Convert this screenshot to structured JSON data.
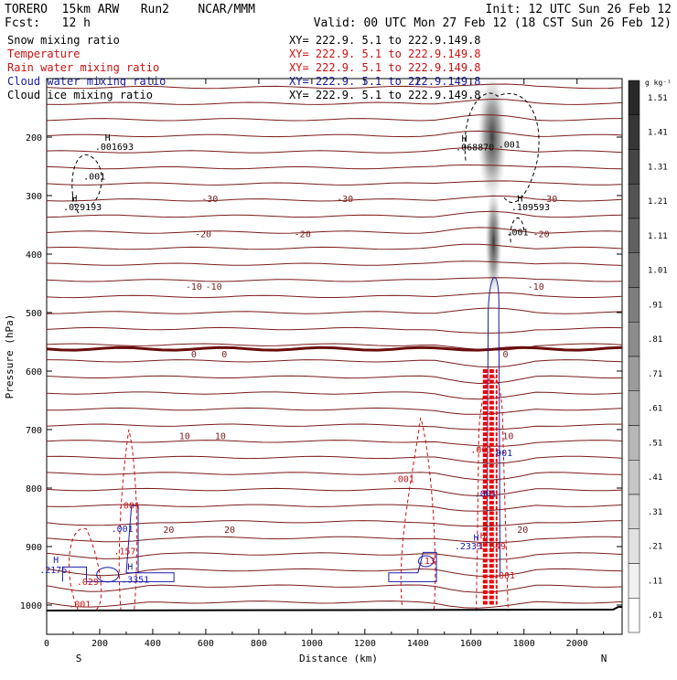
{
  "header": {
    "line1_left": "TORERO  15km ARW   Run2    NCAR/MMM",
    "line1_right": "Init: 12 UTC Sun 26 Feb 12",
    "line2_left": "Fcst:   12 h",
    "line2_right": "Valid: 00 UTC Mon 27 Feb 12 (18 CST Sun 26 Feb 12)"
  },
  "legend": [
    {
      "name": "Snow mixing ratio",
      "xy": "XY= 222.9.  5.1 to 222.9.149.8",
      "color": "#000000"
    },
    {
      "name": "Temperature",
      "xy": "XY= 222.9.  5.1 to 222.9.149.8",
      "color": "#cc1111"
    },
    {
      "name": "Rain water mixing ratio",
      "xy": "XY= 222.9.  5.1 to 222.9.149.8",
      "color": "#cc1111"
    },
    {
      "name": "Cloud water mixing ratio",
      "xy": "XY= 222.9.  5.1 to 222.9.149.8",
      "color": "#1a1aaa"
    },
    {
      "name": "Cloud ice mixing ratio",
      "xy": "XY= 222.9.  5.1 to 222.9.149.8",
      "color": "#000000"
    }
  ],
  "chart_data": {
    "type": "cross-section",
    "xlabel": "Distance (km)",
    "ylabel": "Pressure (hPa)",
    "xlim": [
      0,
      2170
    ],
    "ylim": [
      1050,
      100
    ],
    "x_ticks": [
      0,
      200,
      400,
      600,
      800,
      1000,
      1200,
      1400,
      1600,
      1800,
      2000
    ],
    "y_ticks": [
      200,
      300,
      400,
      500,
      600,
      700,
      800,
      900,
      1000
    ],
    "x_tick_labels": [
      "0",
      "200",
      "400",
      "600",
      "800",
      "1000",
      "1200",
      "1400",
      "1600",
      "1800",
      "2000"
    ],
    "y_tick_labels": [
      "200",
      "300",
      "400",
      "500",
      "600",
      "700",
      "800",
      "900",
      "1000"
    ],
    "endpoints": {
      "left": "S",
      "right": "N"
    },
    "temperature_isotherms_C": [
      {
        "label": "-30",
        "pressure": 305,
        "label_x": [
          615,
          1125,
          1895
        ]
      },
      {
        "label": "-20",
        "pressure": 365,
        "label_x": [
          590,
          965,
          1865
        ]
      },
      {
        "label": "-10",
        "pressure": 455,
        "label_x": [
          555,
          630,
          1845
        ]
      },
      {
        "label": "0",
        "pressure": 570,
        "label_x": [
          555,
          670,
          1730
        ]
      },
      {
        "label": "10",
        "pressure": 710,
        "label_x": [
          520,
          655,
          1740
        ]
      },
      {
        "label": "20",
        "pressure": 870,
        "label_x": [
          460,
          690,
          1795
        ]
      }
    ],
    "annotations": [
      {
        "text": "H",
        "x": 230,
        "p": 206,
        "color": "#000000"
      },
      {
        "text": ".001693",
        "x": 255,
        "p": 222,
        "color": "#000000"
      },
      {
        "text": ".001",
        "x": 180,
        "p": 273,
        "color": "#000000"
      },
      {
        "text": "H",
        "x": 105,
        "p": 310,
        "color": "#000000"
      },
      {
        "text": ".029193",
        "x": 135,
        "p": 325,
        "color": "#000000"
      },
      {
        "text": "H",
        "x": 1575,
        "p": 208,
        "color": "#000000"
      },
      {
        "text": ".068870",
        "x": 1615,
        "p": 223,
        "color": "#000000"
      },
      {
        "text": ".001",
        "x": 1745,
        "p": 218,
        "color": "#000000"
      },
      {
        "text": "H",
        "x": 1785,
        "p": 310,
        "color": "#000000"
      },
      {
        "text": ".109593",
        "x": 1825,
        "p": 325,
        "color": "#000000"
      },
      {
        "text": ".001",
        "x": 1775,
        "p": 368,
        "color": "#000000"
      },
      {
        "text": ".001",
        "x": 1345,
        "p": 790,
        "color": "#cc1111"
      },
      {
        "text": ".001",
        "x": 1640,
        "p": 740,
        "color": "#cc1111"
      },
      {
        "text": ".001",
        "x": 1715,
        "p": 745,
        "color": "#1a1aaa"
      },
      {
        "text": ".001",
        "x": 1655,
        "p": 815,
        "color": "#1a1aaa"
      },
      {
        "text": "H",
        "x": 1620,
        "p": 890,
        "color": "#1a1aaa"
      },
      {
        "text": ".2333",
        "x": 1590,
        "p": 905,
        "color": "#1a1aaa"
      },
      {
        "text": "H",
        "x": 1645,
        "p": 887,
        "color": "#cc1111"
      },
      {
        "text": "1.649",
        "x": 1680,
        "p": 905,
        "color": "#cc1111"
      },
      {
        "text": ".001",
        "x": 1725,
        "p": 955,
        "color": "#cc1111"
      },
      {
        "text": ".001",
        "x": 310,
        "p": 835,
        "color": "#cc1111"
      },
      {
        "text": ".001",
        "x": 285,
        "p": 875,
        "color": "#1a1aaa"
      },
      {
        "text": ".157",
        "x": 295,
        "p": 913,
        "color": "#cc1111"
      },
      {
        "text": "H",
        "x": 35,
        "p": 928,
        "color": "#1a1aaa"
      },
      {
        "text": ".2176",
        "x": 25,
        "p": 945,
        "color": "#1a1aaa"
      },
      {
        "text": "H",
        "x": 315,
        "p": 940,
        "color": "#1a1aaa"
      },
      {
        "text": ".3351",
        "x": 335,
        "p": 962,
        "color": "#1a1aaa"
      },
      {
        "text": ".029",
        "x": 155,
        "p": 966,
        "color": "#cc1111"
      },
      {
        "text": ".001",
        "x": 125,
        "p": 1004,
        "color": "#cc1111"
      },
      {
        "text": ".13",
        "x": 1435,
        "p": 930,
        "color": "#cc1111"
      }
    ],
    "colorbar": {
      "unit_label": "g kg⁻¹",
      "labels": [
        "1.51",
        "1.41",
        "1.31",
        "1.21",
        "1.11",
        "1.01",
        ".91",
        ".81",
        ".71",
        ".61",
        ".51",
        ".41",
        ".31",
        ".21",
        ".11",
        ".01"
      ]
    }
  }
}
